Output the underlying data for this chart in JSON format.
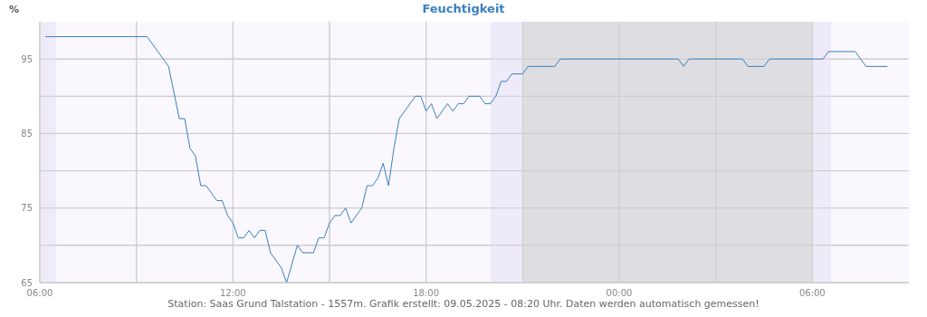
{
  "chart_data": {
    "type": "line",
    "title": "Feuchtigkeit",
    "ylabel": "%",
    "annotations": [
      "Station: Saas Grund Talstation - 1557m. Grafik erstellt: 09.05.2025 - 08:20 Uhr. Daten werden automatisch gemessen!"
    ],
    "x": [
      "2025-05-08T06:10",
      "2025-05-08T09:20",
      "2025-05-08T09:50",
      "2025-05-08T10:00",
      "2025-05-08T10:20",
      "2025-05-08T10:30",
      "2025-05-08T10:40",
      "2025-05-08T10:50",
      "2025-05-08T11:00",
      "2025-05-08T11:10",
      "2025-05-08T11:30",
      "2025-05-08T11:40",
      "2025-05-08T11:50",
      "2025-05-08T12:00",
      "2025-05-08T12:10",
      "2025-05-08T12:20",
      "2025-05-08T12:30",
      "2025-05-08T12:40",
      "2025-05-08T12:50",
      "2025-05-08T13:00",
      "2025-05-08T13:10",
      "2025-05-08T13:30",
      "2025-05-08T13:40",
      "2025-05-08T14:00",
      "2025-05-08T14:10",
      "2025-05-08T14:30",
      "2025-05-08T14:40",
      "2025-05-08T14:50",
      "2025-05-08T15:00",
      "2025-05-08T15:10",
      "2025-05-08T15:20",
      "2025-05-08T15:30",
      "2025-05-08T15:40",
      "2025-05-08T16:00",
      "2025-05-08T16:10",
      "2025-05-08T16:20",
      "2025-05-08T16:30",
      "2025-05-08T16:40",
      "2025-05-08T16:50",
      "2025-05-08T17:00",
      "2025-05-08T17:10",
      "2025-05-08T17:30",
      "2025-05-08T17:40",
      "2025-05-08T17:50",
      "2025-05-08T18:00",
      "2025-05-08T18:10",
      "2025-05-08T18:20",
      "2025-05-08T18:40",
      "2025-05-08T18:50",
      "2025-05-08T19:00",
      "2025-05-08T19:10",
      "2025-05-08T19:20",
      "2025-05-08T19:40",
      "2025-05-08T19:50",
      "2025-05-08T20:00",
      "2025-05-08T20:10",
      "2025-05-08T20:20",
      "2025-05-08T20:30",
      "2025-05-08T20:40",
      "2025-05-08T21:00",
      "2025-05-08T21:10",
      "2025-05-08T22:00",
      "2025-05-08T22:10",
      "2025-05-09T01:50",
      "2025-05-09T02:00",
      "2025-05-09T02:10",
      "2025-05-09T03:50",
      "2025-05-09T04:00",
      "2025-05-09T04:30",
      "2025-05-09T04:40",
      "2025-05-09T06:20",
      "2025-05-09T06:30",
      "2025-05-09T07:20",
      "2025-05-09T07:40",
      "2025-05-09T08:20"
    ],
    "values": [
      98,
      98,
      95,
      94,
      87,
      87,
      83,
      82,
      78,
      78,
      76,
      76,
      74,
      73,
      71,
      71,
      72,
      71,
      72,
      72,
      69,
      67,
      65,
      70,
      69,
      69,
      71,
      71,
      73,
      74,
      74,
      75,
      73,
      75,
      78,
      78,
      79,
      81,
      78,
      83,
      87,
      89,
      90,
      90,
      88,
      89,
      87,
      89,
      88,
      89,
      89,
      90,
      90,
      89,
      89,
      90,
      92,
      92,
      93,
      93,
      94,
      94,
      95,
      95,
      94,
      95,
      95,
      94,
      94,
      95,
      95,
      96,
      96,
      94,
      94
    ],
    "color": "#3a80c0",
    "marker": "none",
    "line_style": "solid",
    "grid": true,
    "xlim": [
      "2025-05-08T06:00",
      "2025-05-09T09:00"
    ],
    "xticks": [
      {
        "value": "2025-05-08T06:00",
        "label": "06:00"
      },
      {
        "value": "2025-05-08T09:00",
        "label": null
      },
      {
        "value": "2025-05-08T12:00",
        "label": "12:00"
      },
      {
        "value": "2025-05-08T15:00",
        "label": null
      },
      {
        "value": "2025-05-08T18:00",
        "label": "18:00"
      },
      {
        "value": "2025-05-08T21:00",
        "label": null
      },
      {
        "value": "2025-05-09T00:00",
        "label": "00:00"
      },
      {
        "value": "2025-05-09T03:00",
        "label": null
      },
      {
        "value": "2025-05-09T06:00",
        "label": "06:00"
      }
    ],
    "ylim": [
      65,
      100
    ],
    "yticks": [
      65,
      {
        "value": 70,
        "label": null
      },
      75,
      {
        "value": 80,
        "label": null
      },
      85,
      {
        "value": 90,
        "label": null
      },
      95
    ],
    "bands": [
      {
        "axis": "x",
        "from": "2025-05-08T06:00",
        "to": "2025-05-08T06:30",
        "color": "#efeaf8"
      },
      {
        "axis": "x",
        "from": "2025-05-08T20:00",
        "to": "2025-05-08T21:00",
        "color": "#efeaf8"
      },
      {
        "axis": "x",
        "from": "2025-05-08T21:00",
        "to": "2025-05-09T06:00",
        "color": "#dedee2"
      },
      {
        "axis": "x",
        "from": "2025-05-09T06:00",
        "to": "2025-05-09T06:35",
        "color": "#efeaf8"
      }
    ]
  }
}
